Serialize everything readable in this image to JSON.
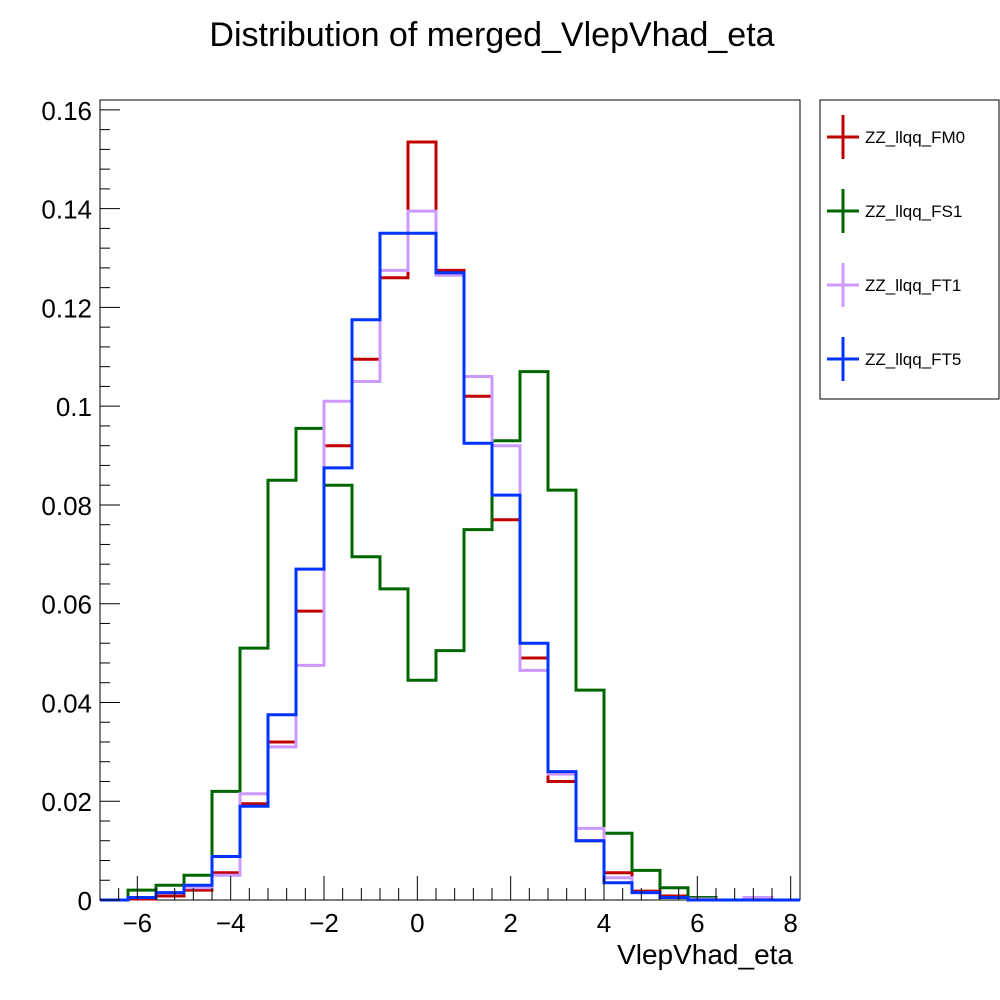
{
  "chart_data": {
    "type": "histogram-step",
    "title": "Distribution of merged_VlepVhad_eta",
    "xlabel": "VlepVhad_eta",
    "ylabel": "",
    "xlim": [
      -6.8,
      8.2
    ],
    "ylim": [
      0,
      0.162
    ],
    "x_ticks": [
      -6,
      -4,
      -2,
      0,
      2,
      4,
      6,
      8
    ],
    "x_tick_labels": [
      "−6",
      "−4",
      "−2",
      "0",
      "2",
      "4",
      "6",
      "8"
    ],
    "y_ticks": [
      0,
      0.02,
      0.04,
      0.06,
      0.08,
      0.1,
      0.12,
      0.14,
      0.16
    ],
    "y_tick_labels": [
      "0",
      "0.02",
      "0.04",
      "0.06",
      "0.08",
      "0.1",
      "0.12",
      "0.14",
      "0.16"
    ],
    "grid": false,
    "legend_position": "right",
    "bin_edges": [
      -6.8,
      -6.2,
      -5.6,
      -5.0,
      -4.4,
      -3.8,
      -3.2,
      -2.6,
      -2.0,
      -1.4,
      -0.8,
      -0.2,
      0.4,
      1.0,
      1.6,
      2.2,
      2.8,
      3.4,
      4.0,
      4.6,
      5.2,
      5.8,
      6.4,
      7.0,
      7.6,
      8.2
    ],
    "series": [
      {
        "name": "ZZ_llqq_FM0",
        "color": "#c00000",
        "values": [
          0.0,
          0.0002,
          0.0008,
          0.002,
          0.0055,
          0.0195,
          0.032,
          0.0585,
          0.092,
          0.1095,
          0.126,
          0.1535,
          0.1275,
          0.102,
          0.077,
          0.049,
          0.024,
          0.012,
          0.0055,
          0.0018,
          0.0008,
          0.0002,
          0.0,
          0.0,
          0.0
        ]
      },
      {
        "name": "ZZ_llqq_FS1",
        "color": "#006600",
        "values": [
          0.0,
          0.002,
          0.003,
          0.005,
          0.022,
          0.051,
          0.085,
          0.0955,
          0.084,
          0.0695,
          0.063,
          0.0445,
          0.0505,
          0.075,
          0.093,
          0.107,
          0.083,
          0.0425,
          0.0135,
          0.006,
          0.0025,
          0.0005,
          0.0,
          0.0,
          0.0
        ]
      },
      {
        "name": "ZZ_llqq_FT1",
        "color": "#cc99ff",
        "values": [
          0.0,
          0.0005,
          0.0015,
          0.0025,
          0.005,
          0.0215,
          0.031,
          0.0475,
          0.101,
          0.105,
          0.1275,
          0.1395,
          0.1265,
          0.106,
          0.092,
          0.0465,
          0.0255,
          0.0145,
          0.0045,
          0.0015,
          0.0005,
          0.0002,
          0.0,
          0.0005,
          0.0
        ]
      },
      {
        "name": "ZZ_llqq_FT5",
        "color": "#0033ff",
        "values": [
          0.0,
          0.0005,
          0.0015,
          0.003,
          0.0088,
          0.019,
          0.0375,
          0.067,
          0.0875,
          0.1175,
          0.135,
          0.135,
          0.127,
          0.0925,
          0.082,
          0.052,
          0.026,
          0.012,
          0.0035,
          0.0015,
          0.0005,
          0.0,
          0.0,
          0.0,
          0.0
        ]
      }
    ]
  }
}
